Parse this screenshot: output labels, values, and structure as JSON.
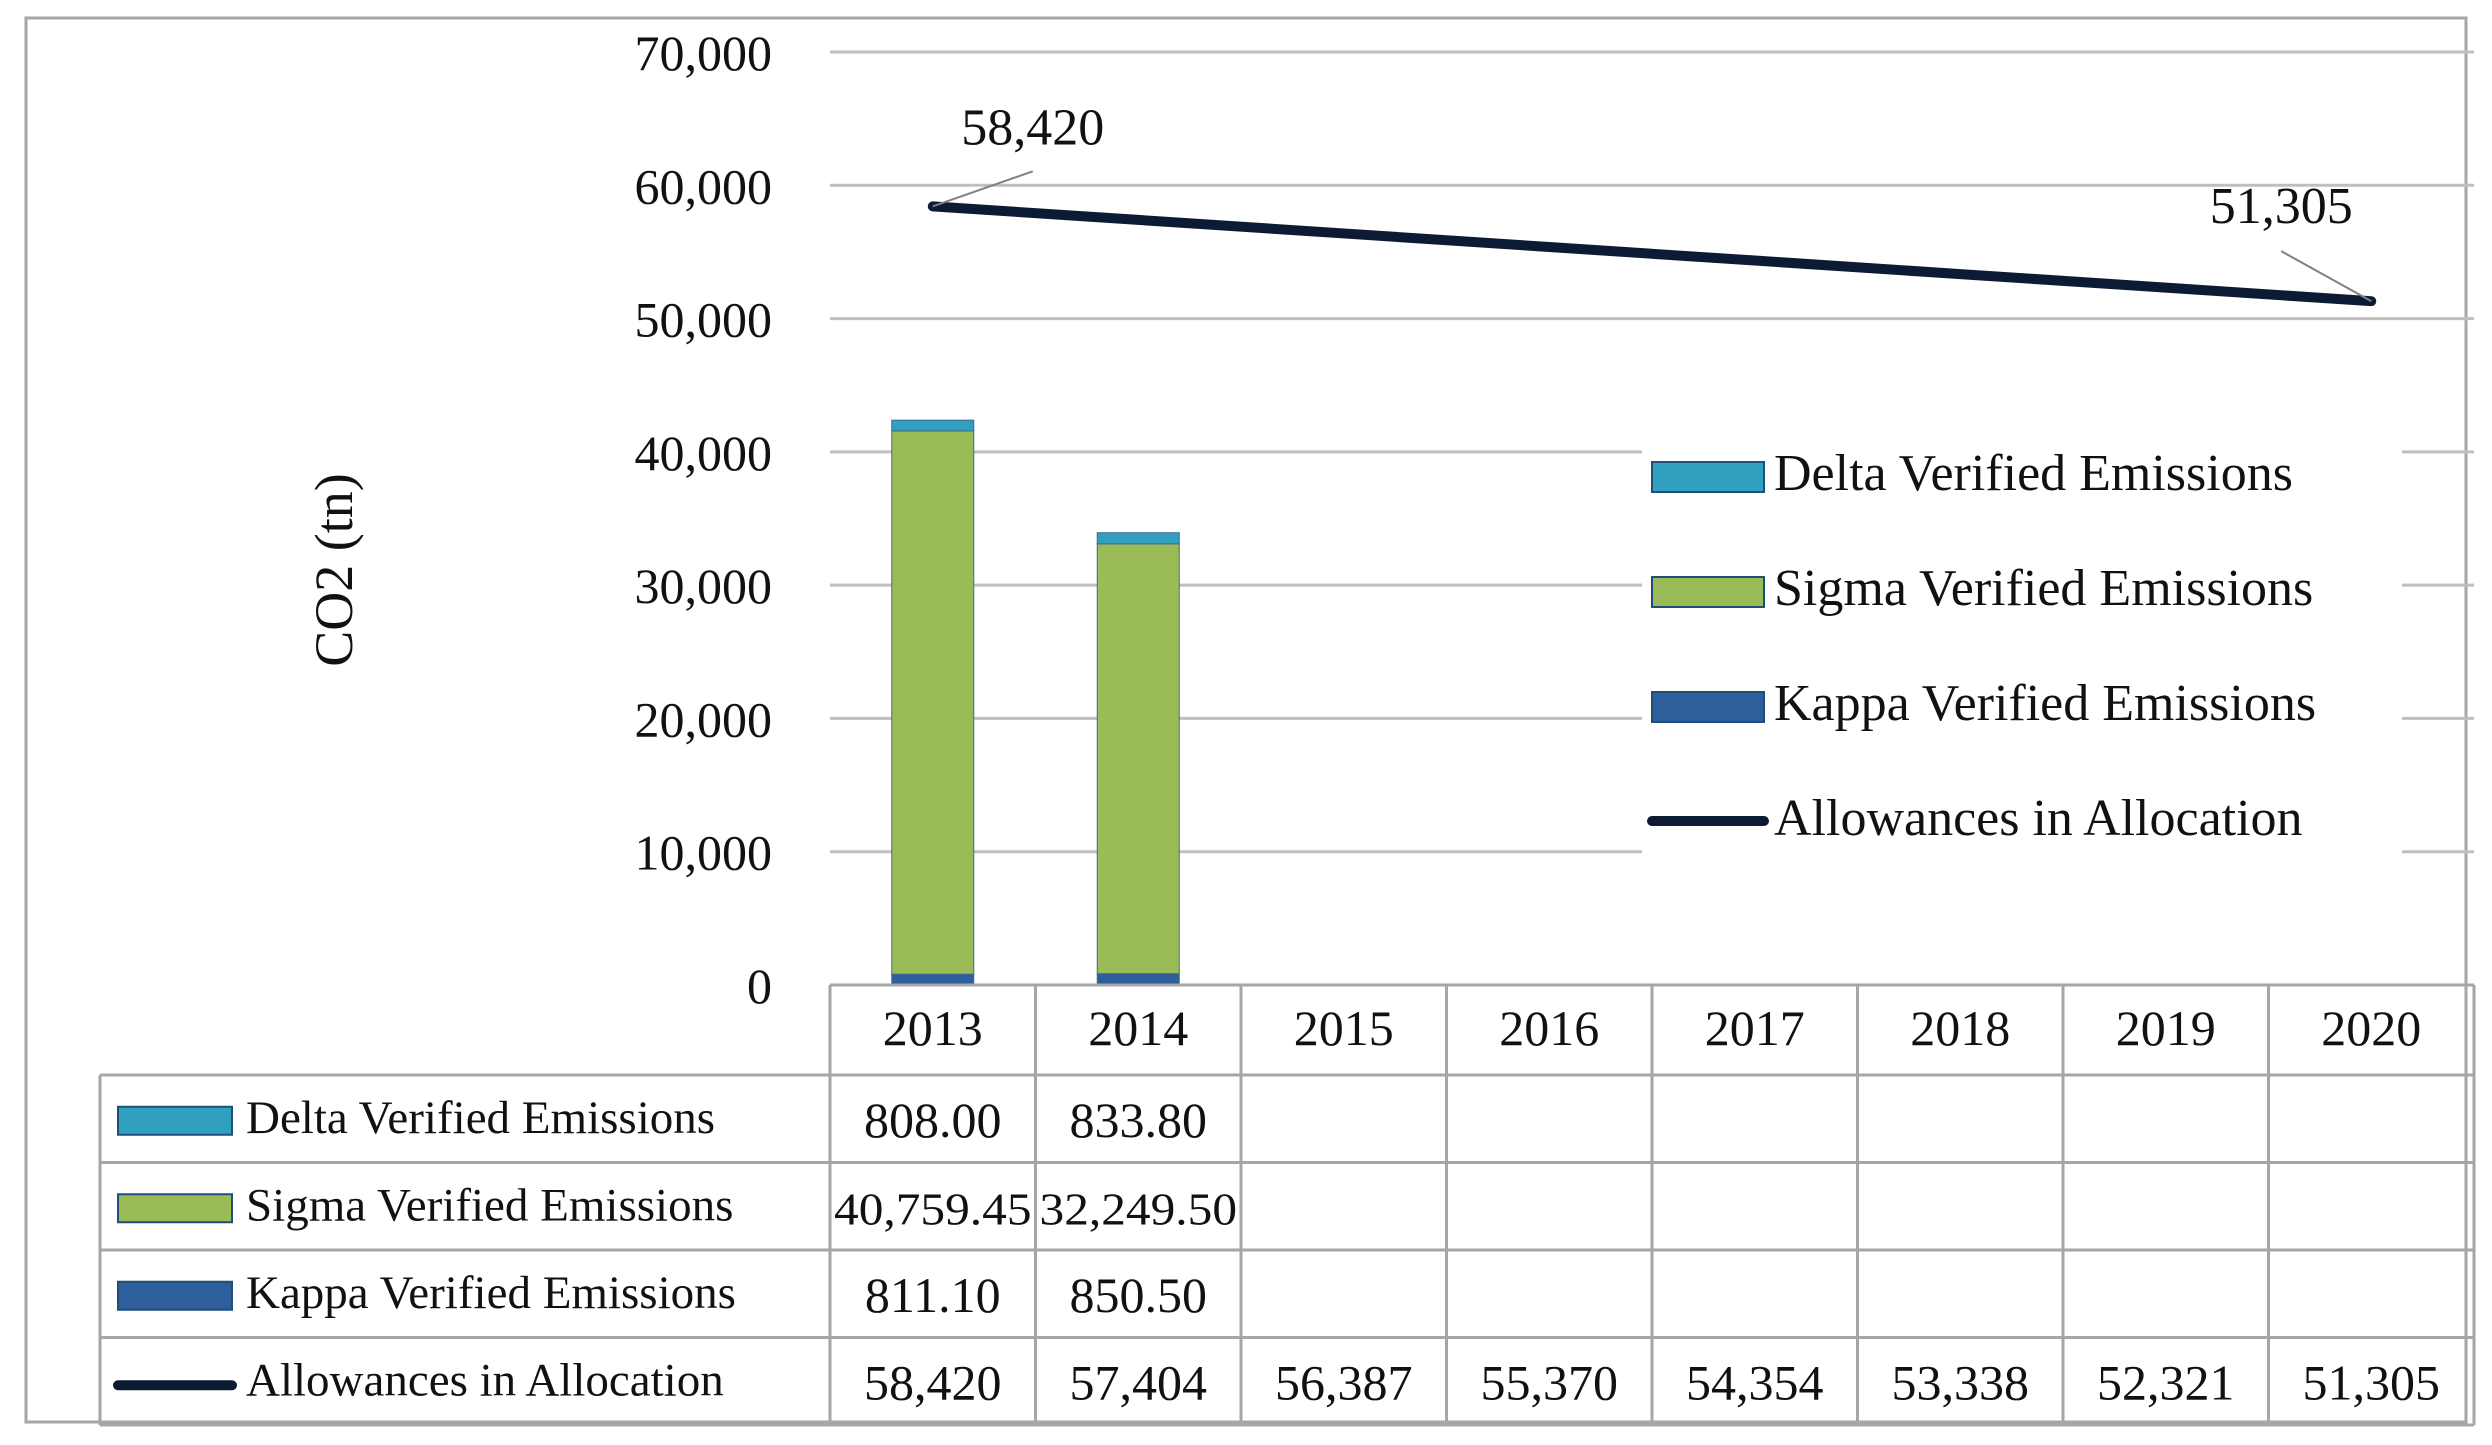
{
  "chart_data": {
    "type": "bar",
    "title": "",
    "xlabel": "",
    "ylabel": "CO2  (tn)",
    "ylim": [
      0,
      70000
    ],
    "yticks": [
      0,
      10000,
      20000,
      30000,
      40000,
      50000,
      60000,
      70000
    ],
    "ytick_labels": [
      "0",
      "10,000",
      "20,000",
      "30,000",
      "40,000",
      "50,000",
      "60,000",
      "70,000"
    ],
    "categories": [
      "2013",
      "2014",
      "2015",
      "2016",
      "2017",
      "2018",
      "2019",
      "2020"
    ],
    "stacked_series": [
      {
        "name": "Kappa Verified Emissions",
        "color": "#2f5e9c",
        "values": [
          811.1,
          850.5,
          null,
          null,
          null,
          null,
          null,
          null
        ],
        "table_labels": [
          "811.10",
          "850.50",
          "",
          "",
          "",
          "",
          "",
          ""
        ]
      },
      {
        "name": "Sigma Verified Emissions",
        "color": "#9bbb59",
        "values": [
          40759.45,
          32249.5,
          null,
          null,
          null,
          null,
          null,
          null
        ],
        "table_labels": [
          "40,759.45",
          "32,249.50",
          "",
          "",
          "",
          "",
          "",
          ""
        ]
      },
      {
        "name": "Delta Verified Emissions",
        "color": "#31a0be",
        "values": [
          808.0,
          833.8,
          null,
          null,
          null,
          null,
          null,
          null
        ],
        "table_labels": [
          "808.00",
          "833.80",
          "",
          "",
          "",
          "",
          "",
          ""
        ]
      }
    ],
    "line_series": {
      "name": "Allowances in Allocation",
      "color": "#0c1a33",
      "values": [
        58420,
        57404,
        56387,
        55370,
        54354,
        53338,
        52321,
        51305
      ],
      "table_labels": [
        "58,420",
        "57,404",
        "56,387",
        "55,370",
        "54,354",
        "53,338",
        "52,321",
        "51,305"
      ]
    },
    "annotations": [
      {
        "text": "58,420",
        "category": "2013",
        "value": 58420
      },
      {
        "text": "51,305",
        "category": "2020",
        "value": 51305
      }
    ],
    "legend": {
      "position": "right-inside",
      "entries": [
        "Delta Verified Emissions",
        "Sigma Verified Emissions",
        "Kappa Verified Emissions",
        "Allowances in Allocation"
      ]
    },
    "data_table": {
      "rows": [
        "Delta Verified Emissions",
        "Sigma Verified Emissions",
        "Kappa Verified Emissions",
        "Allowances in Allocation"
      ]
    },
    "grid": true
  }
}
